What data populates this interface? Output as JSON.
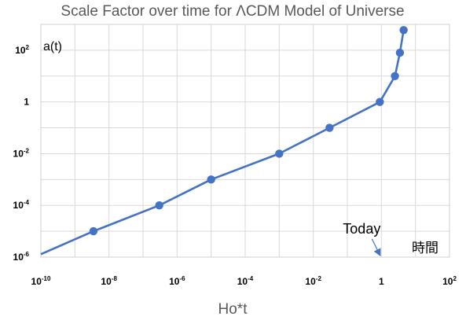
{
  "chart_data": {
    "type": "line",
    "title": "Scale Factor over time for ΛCDM Model of Universe",
    "xlabel": "Ho*t",
    "ylabel": "a(t)",
    "x_scale": "log",
    "y_scale": "log",
    "xlim": [
      1e-10,
      100
    ],
    "ylim": [
      1e-06,
      1000
    ],
    "grid": true,
    "x_ticks": [
      {
        "value": 1e-10,
        "base": "10",
        "exp": "-10"
      },
      {
        "value": 1e-08,
        "base": "10",
        "exp": "-8"
      },
      {
        "value": 1e-06,
        "base": "10",
        "exp": "-6"
      },
      {
        "value": 0.0001,
        "base": "10",
        "exp": "-4"
      },
      {
        "value": 0.01,
        "base": "10",
        "exp": "-2"
      },
      {
        "value": 1,
        "base": "1",
        "exp": ""
      },
      {
        "value": 100,
        "base": "10",
        "exp": "2"
      }
    ],
    "y_ticks": [
      {
        "value": 1e-06,
        "base": "10",
        "exp": "-6"
      },
      {
        "value": 0.0001,
        "base": "10",
        "exp": "-4"
      },
      {
        "value": 0.01,
        "base": "10",
        "exp": "-2"
      },
      {
        "value": 1,
        "base": "1",
        "exp": ""
      },
      {
        "value": 100,
        "base": "10",
        "exp": "2"
      }
    ],
    "series": [
      {
        "color": "#4472c4",
        "points": [
          {
            "x": 1e-10,
            "y": 1.3e-06,
            "marker": false
          },
          {
            "x": 3.5e-09,
            "y": 1e-05,
            "marker": true
          },
          {
            "x": 3e-07,
            "y": 0.0001,
            "marker": true
          },
          {
            "x": 1e-05,
            "y": 0.001,
            "marker": true
          },
          {
            "x": 0.001,
            "y": 0.01,
            "marker": true
          },
          {
            "x": 0.03,
            "y": 0.1,
            "marker": true
          },
          {
            "x": 0.9,
            "y": 1,
            "marker": true
          },
          {
            "x": 2.5,
            "y": 10,
            "marker": true
          },
          {
            "x": 3.5,
            "y": 80,
            "marker": true
          },
          {
            "x": 4.5,
            "y": 600,
            "marker": true
          }
        ]
      }
    ],
    "annotations": {
      "today_label": "Today",
      "today_x": 1,
      "time_label": "時間"
    }
  }
}
